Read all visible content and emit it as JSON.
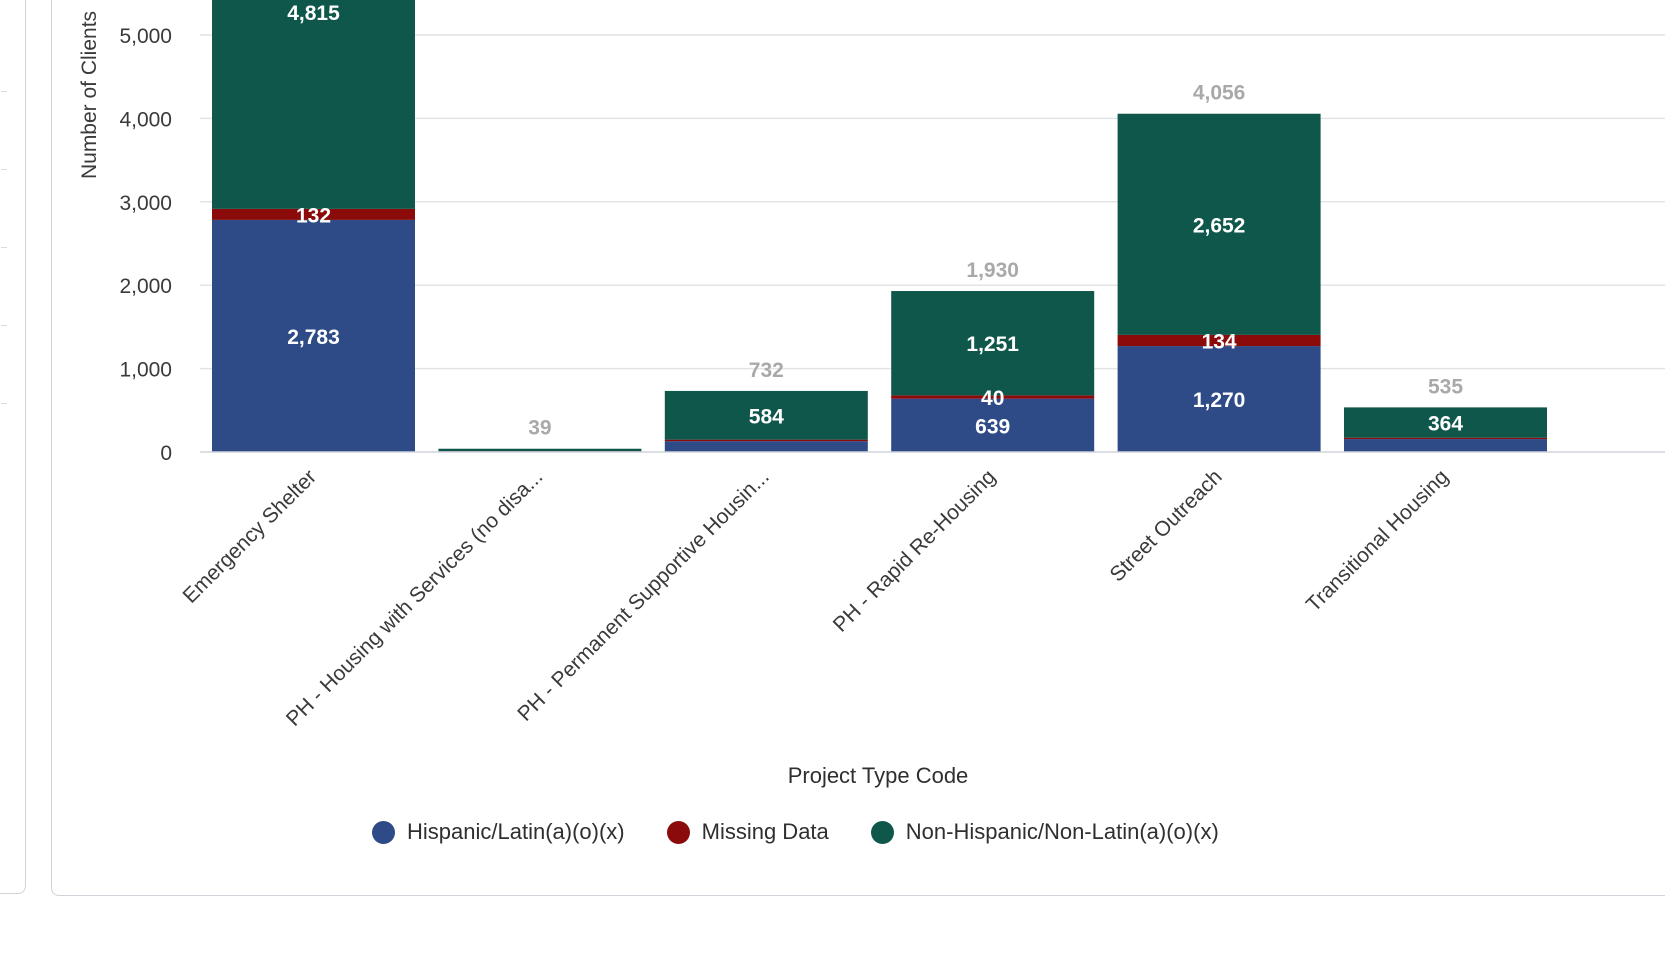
{
  "chart_data": {
    "type": "bar",
    "stacked": true,
    "xlabel": "Project Type Code",
    "ylabel": "Number of Clients",
    "categories": [
      "Emergency Shelter",
      "PH - Housing with Services (no disa...",
      "PH - Permanent Supportive Housin...",
      "PH - Rapid Re-Housing",
      "Street Outreach",
      "Transitional Housing"
    ],
    "series": [
      {
        "name": "Hispanic/Latin(a)(o)(x)",
        "color": "#2e4b88",
        "values": [
          2783,
          10,
          130,
          639,
          1270,
          155
        ],
        "labels": [
          "2,783",
          "",
          "",
          "639",
          "1,270",
          ""
        ]
      },
      {
        "name": "Missing Data",
        "color": "#8b0a0a",
        "values": [
          132,
          2,
          18,
          40,
          134,
          16
        ],
        "labels": [
          "132",
          "",
          "",
          "40",
          "134",
          ""
        ]
      },
      {
        "name": "Non-Hispanic/Non-Latin(a)(o)(x)",
        "color": "#0f574a",
        "values": [
          4815,
          27,
          584,
          1251,
          2652,
          364
        ],
        "labels": [
          "4,815",
          "",
          "584",
          "1,251",
          "2,652",
          "364"
        ]
      }
    ],
    "totals": [
      null,
      39,
      732,
      1930,
      4056,
      535
    ],
    "total_labels": [
      "",
      "39",
      "732",
      "1,930",
      "4,056",
      "535"
    ],
    "yticks": [
      0,
      1000,
      2000,
      3000,
      4000,
      5000
    ],
    "ytick_labels": [
      "0",
      "1,000",
      "2,000",
      "3,000",
      "4,000",
      "5,000"
    ],
    "grid": true,
    "legend_position": "bottom"
  }
}
